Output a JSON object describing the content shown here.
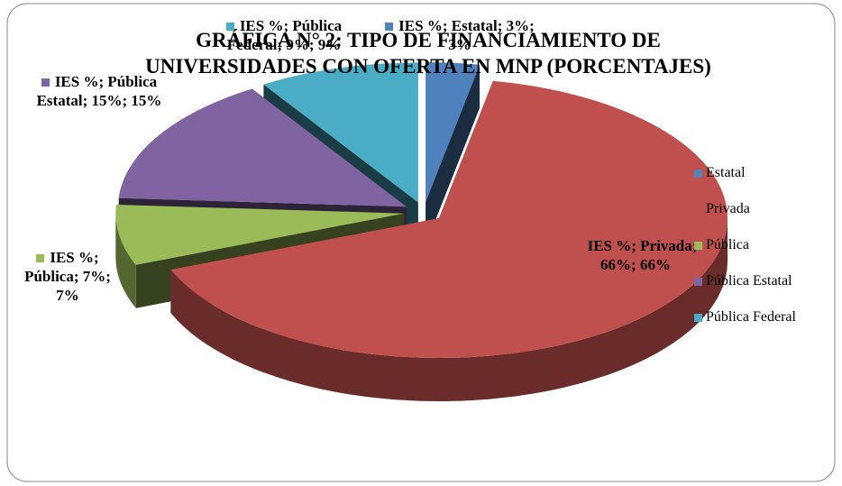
{
  "chart_data": {
    "type": "pie",
    "title": "GRÁFICA N° 2: TIPO DE FINANCIAMIENTO DE UNIVERSIDADES CON OFERTA EN MNP (PORCENTAJES)",
    "series": [
      {
        "name": "IES %",
        "categories": [
          "Estatal",
          "Privada",
          "Pública",
          "Pública Estatal",
          "Pública Federal"
        ],
        "values": [
          3,
          66,
          7,
          15,
          9
        ],
        "value_labels": [
          "IES %; Estatal; 3%; 3%",
          "IES %; Privada; 66%; 66%",
          "IES %; Pública; 7%; 7%",
          "IES %; Pública Estatal; 15%; 15%",
          "IES %; Pública Federal; 9%; 9%"
        ],
        "colors": [
          "#4f81bd",
          "#c0504d",
          "#9bbb59",
          "#8064a2",
          "#4bacc6"
        ]
      }
    ],
    "legend": "right"
  }
}
